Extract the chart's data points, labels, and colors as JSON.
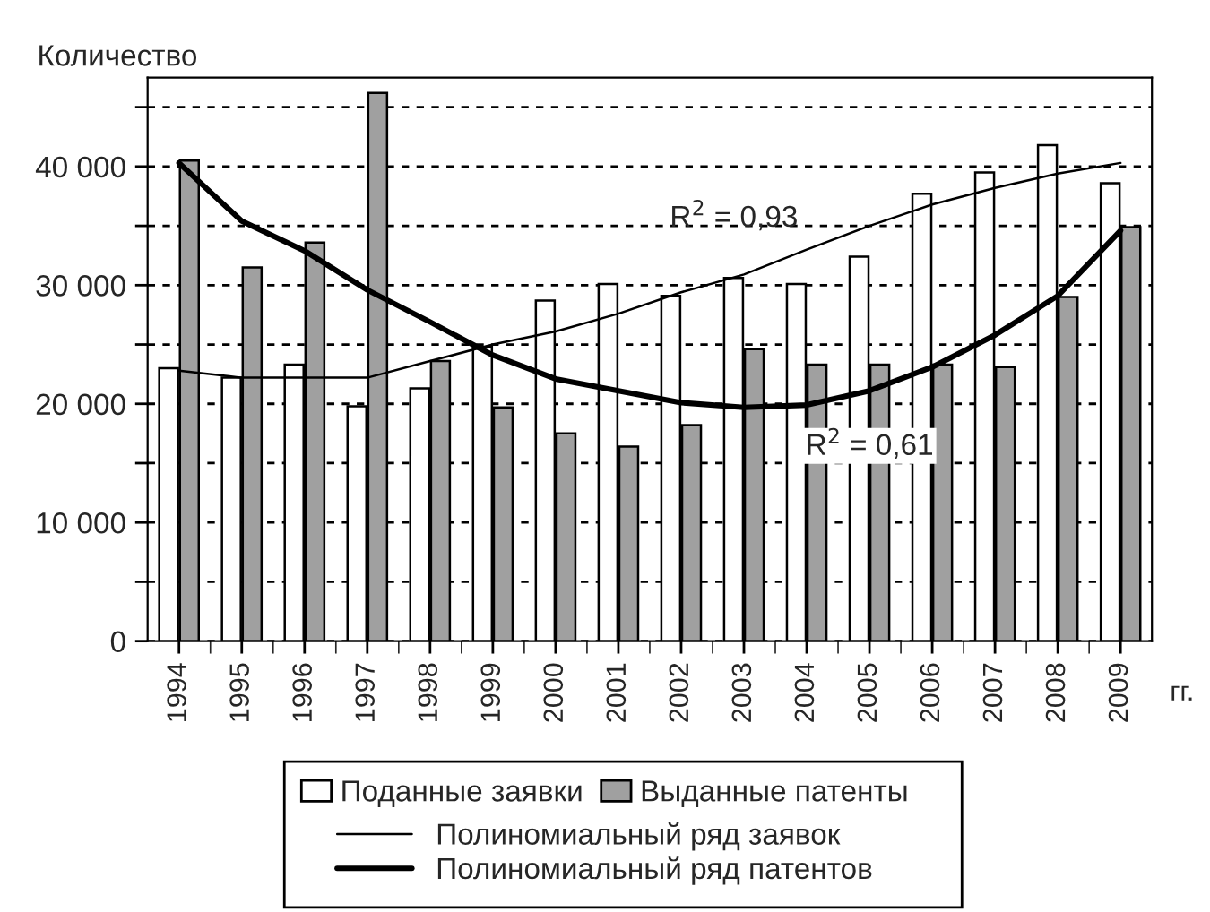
{
  "chart_data": {
    "type": "bar",
    "ylabel": "Количество",
    "xlabel": "гг.",
    "categories": [
      "1994",
      "1995",
      "1996",
      "1997",
      "1998",
      "1999",
      "2000",
      "2001",
      "2002",
      "2003",
      "2004",
      "2005",
      "2006",
      "2007",
      "2008",
      "2009"
    ],
    "series": [
      {
        "name": "Поданные заявки",
        "color": "#ffffff",
        "values": [
          23000,
          22200,
          23300,
          19800,
          21300,
          24800,
          28700,
          30100,
          29100,
          30600,
          30100,
          32400,
          37700,
          39500,
          41800,
          38600
        ]
      },
      {
        "name": "Выданные патенты",
        "color": "#a0a0a0",
        "values": [
          40500,
          31500,
          33600,
          46200,
          23600,
          19700,
          17500,
          16400,
          18200,
          24600,
          23300,
          23300,
          23300,
          23100,
          29000,
          34900
        ]
      },
      {
        "name": "Полиномиальный ряд заявок",
        "type": "line",
        "color": "#000000",
        "values": [
          22800,
          22200,
          22200,
          22200,
          23600,
          25000,
          26100,
          27600,
          29400,
          30900,
          33000,
          35000,
          36800,
          38200,
          39400,
          40300
        ]
      },
      {
        "name": "Полиномиальный ряд патентов",
        "type": "line",
        "color": "#000000",
        "values": [
          40300,
          35400,
          32900,
          29600,
          26900,
          24100,
          22100,
          21100,
          20100,
          19700,
          19900,
          21100,
          23100,
          25800,
          29100,
          34600
        ]
      }
    ],
    "ylim": [
      0,
      47500
    ],
    "yticks": [
      {
        "value": 0,
        "label": "0"
      },
      {
        "value": 5000,
        "label": null
      },
      {
        "value": 10000,
        "label": "10 000"
      },
      {
        "value": 15000,
        "label": null
      },
      {
        "value": 20000,
        "label": "20 000"
      },
      {
        "value": 25000,
        "label": null
      },
      {
        "value": 30000,
        "label": "30 000"
      },
      {
        "value": 35000,
        "label": null
      },
      {
        "value": 40000,
        "label": "40 000"
      },
      {
        "value": 45000,
        "label": null
      }
    ],
    "annotations": [
      "R$^{2}$ = 0,93",
      "R$^{2}$ = 0,61"
    ],
    "grid": "y",
    "legend": "bottom"
  }
}
